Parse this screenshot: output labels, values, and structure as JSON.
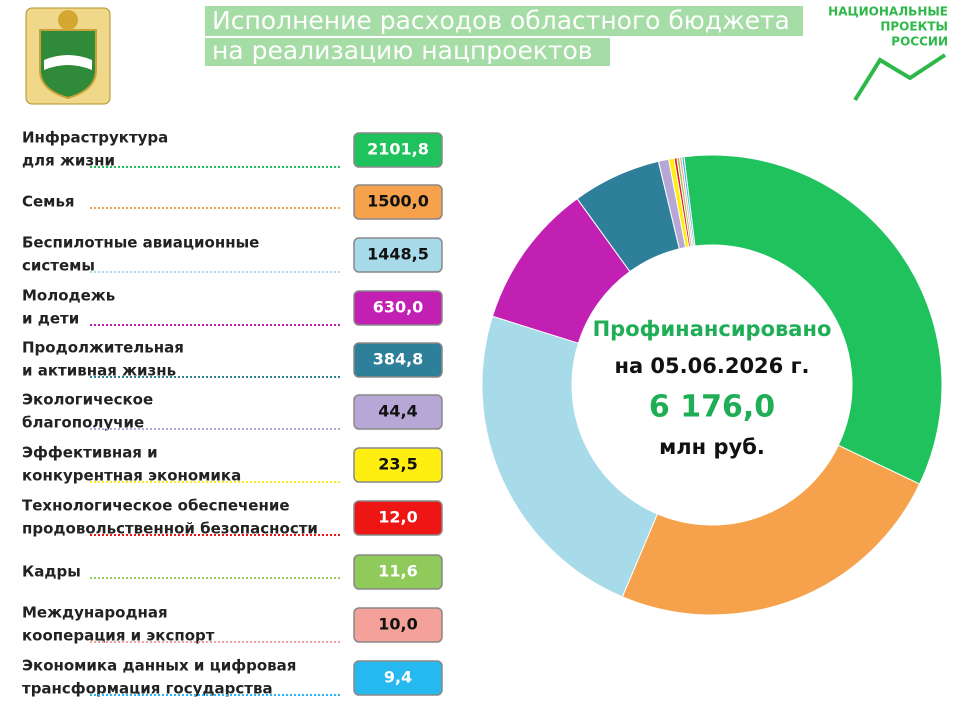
{
  "header": {
    "title_lines": [
      "Исполнение расходов областного бюджета",
      "на реализацию нацпроектов"
    ],
    "logo_lines": [
      "НАЦИОНАЛЬНЫЕ",
      "ПРОЕКТЫ",
      "РОССИИ"
    ]
  },
  "chart_data": {
    "type": "donut",
    "categories": [
      [
        "Инфраструктура",
        "для жизни"
      ],
      [
        "Семья"
      ],
      [
        "Беспилотные авиационные",
        "системы"
      ],
      [
        "Молодежь",
        "и дети"
      ],
      [
        "Продолжительная",
        "и активная жизнь"
      ],
      [
        "Экологическое",
        "благополучие"
      ],
      [
        "Эффективная и",
        "конкурентная экономика"
      ],
      [
        "Технологическое обеспечение",
        "продовольственной безопасности"
      ],
      [
        "Кадры"
      ],
      [
        "Международная",
        "кооперация и экспорт"
      ],
      [
        "Экономика данных и цифровая",
        "трансформация государства"
      ]
    ],
    "values": [
      2101.8,
      1500.0,
      1448.5,
      630.0,
      384.8,
      44.4,
      23.5,
      12.0,
      11.6,
      10.0,
      9.4
    ],
    "value_labels": [
      "2101,8",
      "1500,0",
      "1448,5",
      "630,0",
      "384,8",
      "44,4",
      "23,5",
      "12,0",
      "11,6",
      "10,0",
      "9,4"
    ],
    "colors": [
      "#1fc25c",
      "#f6a24c",
      "#a7dbea",
      "#c21fb3",
      "#2e7f99",
      "#b7a7d6",
      "#ffee11",
      "#ee1515",
      "#8fca5a",
      "#f3a199",
      "#25b9ef"
    ],
    "center_lines": [
      "Профинансировано",
      "на 05.06.2026 г.",
      "6 176,0",
      "млн руб."
    ]
  }
}
